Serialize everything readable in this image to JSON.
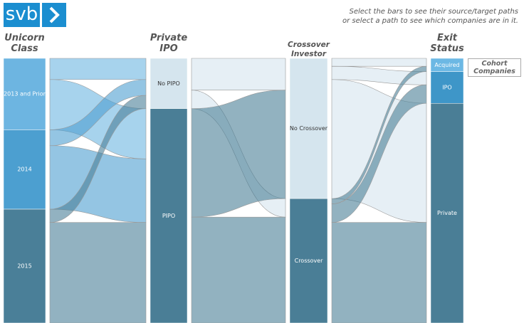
{
  "header": {
    "logo": "svb",
    "instructions": [
      "Select the bars to see their source/target paths",
      "or select a path to see which companies are in it."
    ],
    "button": "Cohort Companies"
  },
  "chart_data": {
    "type": "parallel-sets",
    "stages": [
      {
        "name": "Unicorn Class",
        "categories": [
          "2013 and Prior",
          "2014",
          "2015"
        ],
        "values": [
          27,
          30,
          43
        ],
        "colors": [
          "#6db5e1",
          "#4c9fd0",
          "#4a7f98"
        ]
      },
      {
        "name": "Private IPO",
        "categories": [
          "No PIPO",
          "PIPO"
        ],
        "values": [
          19,
          81
        ],
        "colors": [
          "#d5e5ee",
          "#4a7e96"
        ]
      },
      {
        "name": "Crossover Investor",
        "categories": [
          "No Crossover",
          "Crossover"
        ],
        "values": [
          53,
          47
        ],
        "colors": [
          "#d5e5ee",
          "#4a7e96"
        ]
      },
      {
        "name": "Exit Status",
        "categories": [
          "Acquired",
          "IPO",
          "Private"
        ],
        "values": [
          5,
          12,
          83
        ],
        "colors": [
          "#6cb8e4",
          "#3e96c8",
          "#4a7e96"
        ]
      }
    ],
    "flows": [
      [
        [
          8,
          19
        ],
        [
          6,
          24
        ],
        [
          5,
          38
        ]
      ],
      [
        [
          12,
          7
        ],
        [
          41,
          40
        ]
      ],
      [
        [
          3,
          5,
          45
        ],
        [
          2,
          7,
          38
        ]
      ]
    ]
  }
}
